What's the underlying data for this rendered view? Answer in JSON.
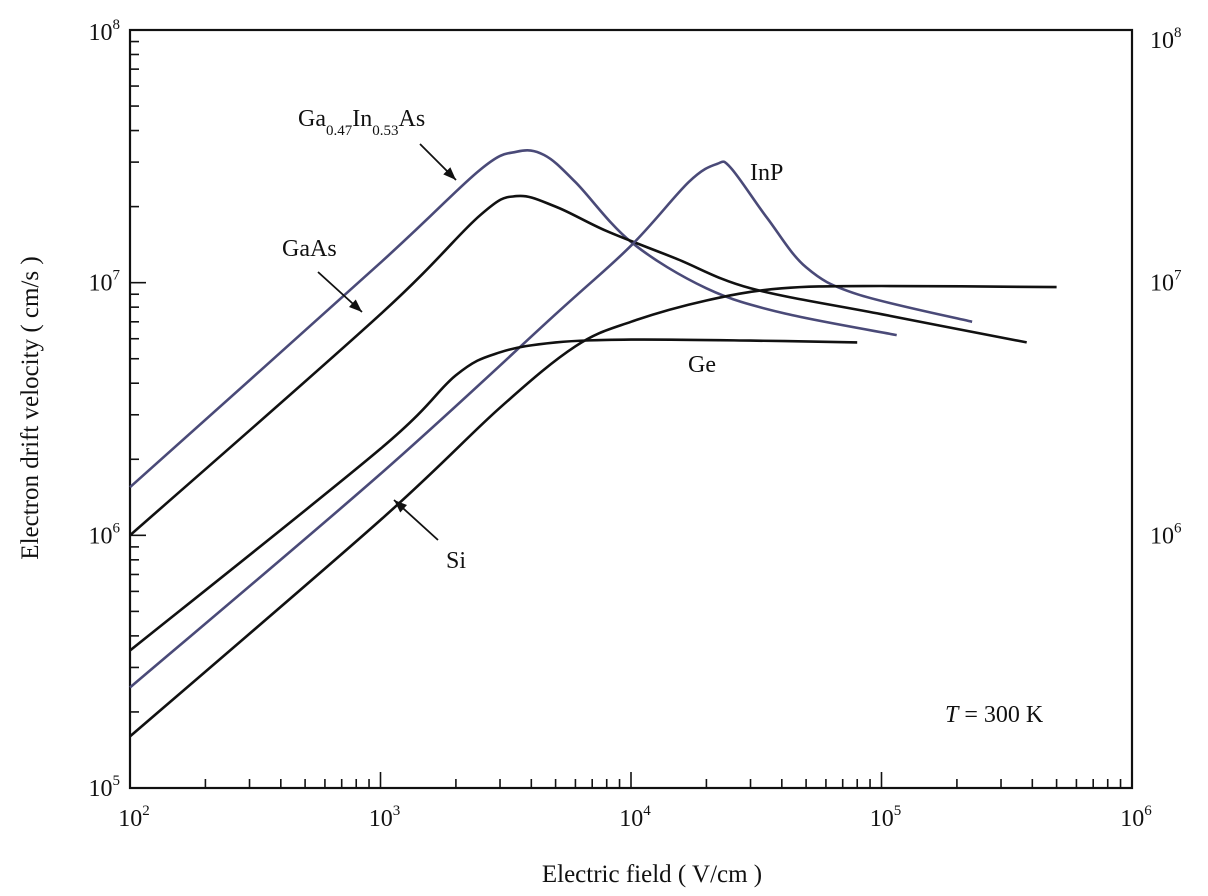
{
  "chart_data": {
    "type": "line",
    "title": "",
    "xlabel": "Electric field ( V/cm )",
    "ylabel": "Electron drift velocity ( cm/s )",
    "x_scale": "log",
    "y_scale": "log",
    "xlim": [
      100,
      1000000
    ],
    "ylim": [
      100000,
      100000000
    ],
    "x_ticks": [
      {
        "base": "10",
        "exp": "2"
      },
      {
        "base": "10",
        "exp": "3"
      },
      {
        "base": "10",
        "exp": "4"
      },
      {
        "base": "10",
        "exp": "5"
      },
      {
        "base": "10",
        "exp": "6"
      }
    ],
    "y_ticks_left": [
      {
        "base": "10",
        "exp": "5"
      },
      {
        "base": "10",
        "exp": "6"
      },
      {
        "base": "10",
        "exp": "7"
      },
      {
        "base": "10",
        "exp": "8"
      }
    ],
    "y_ticks_right": [
      {
        "base": "10",
        "exp": "6"
      },
      {
        "base": "10",
        "exp": "7"
      },
      {
        "base": "10",
        "exp": "8"
      }
    ],
    "annotation": {
      "italic": "T",
      "rest": " = 300 K"
    },
    "series": [
      {
        "name_parts": [
          [
            "Ga",
            ""
          ],
          [
            "0.47",
            "sub"
          ],
          [
            "In",
            ""
          ],
          [
            "0.53",
            "sub"
          ],
          [
            "As",
            ""
          ]
        ],
        "color": "#4a4a78",
        "points": [
          [
            100,
            1550000
          ],
          [
            1000,
            12000000
          ],
          [
            2500,
            28000000
          ],
          [
            3500,
            33000000
          ],
          [
            4500,
            32000000
          ],
          [
            6000,
            25000000
          ],
          [
            10000,
            14500000
          ],
          [
            20000,
            9500000
          ],
          [
            40000,
            7600000
          ],
          [
            115000,
            6200000
          ]
        ]
      },
      {
        "name_parts": [
          [
            "GaAs",
            ""
          ]
        ],
        "color": "#111111",
        "points": [
          [
            100,
            1000000
          ],
          [
            1000,
            7500000
          ],
          [
            2500,
            18500000
          ],
          [
            3500,
            22000000
          ],
          [
            5000,
            20000000
          ],
          [
            8000,
            16000000
          ],
          [
            15000,
            12500000
          ],
          [
            30000,
            9500000
          ],
          [
            100000,
            7500000
          ],
          [
            380000,
            5800000
          ]
        ]
      },
      {
        "name_parts": [
          [
            "InP",
            ""
          ]
        ],
        "color": "#4a4a78",
        "points": [
          [
            100,
            250000
          ],
          [
            1000,
            1750000
          ],
          [
            5000,
            7500000
          ],
          [
            10000,
            14000000
          ],
          [
            17000,
            25000000
          ],
          [
            22000,
            29500000
          ],
          [
            25000,
            28500000
          ],
          [
            35000,
            18000000
          ],
          [
            50000,
            11500000
          ],
          [
            80000,
            9000000
          ],
          [
            230000,
            7000000
          ]
        ]
      },
      {
        "name_parts": [
          [
            "Ge",
            ""
          ]
        ],
        "color": "#111111",
        "points": [
          [
            100,
            350000
          ],
          [
            1000,
            2200000
          ],
          [
            2000,
            4300000
          ],
          [
            3000,
            5300000
          ],
          [
            5000,
            5800000
          ],
          [
            10000,
            5950000
          ],
          [
            30000,
            5900000
          ],
          [
            80000,
            5800000
          ]
        ]
      },
      {
        "name_parts": [
          [
            "Si",
            ""
          ]
        ],
        "color": "#111111",
        "points": [
          [
            100,
            160000
          ],
          [
            1000,
            1150000
          ],
          [
            3000,
            3200000
          ],
          [
            6000,
            5600000
          ],
          [
            10000,
            7000000
          ],
          [
            20000,
            8500000
          ],
          [
            40000,
            9500000
          ],
          [
            100000,
            9700000
          ],
          [
            500000,
            9600000
          ]
        ]
      }
    ]
  }
}
